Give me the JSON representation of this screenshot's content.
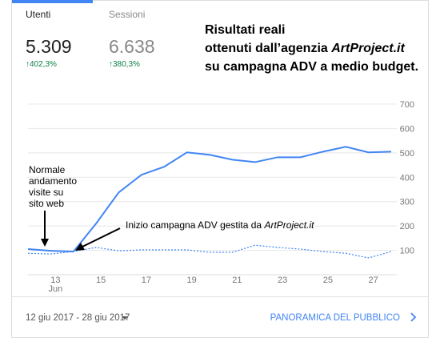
{
  "tabs": [
    {
      "label": "Utenti",
      "value": "5.309",
      "change": "↑402,3%"
    },
    {
      "label": "Sessioni",
      "value": "6.638",
      "change": "↑380,3%"
    }
  ],
  "headline": {
    "line1": "Risultati reali",
    "line2": "ottenuti dall’agenzia ",
    "line2_brand": "ArtProject.it",
    "line3": "su campagna ADV a medio budget."
  },
  "annotations": {
    "normal": [
      "Normale",
      "andamento",
      "visite su",
      "sito web"
    ],
    "start": "Inizio campagna ADV gestita da ",
    "start_brand": "ArtProject.it"
  },
  "footer": {
    "date_range": "12 giu 2017 - 28 giu 2017",
    "link": "PANORAMICA DEL PUBBLICO"
  },
  "chart_data": {
    "type": "line",
    "categories": [
      null,
      "13",
      null,
      "15",
      null,
      "17",
      null,
      "19",
      null,
      "21",
      null,
      "23",
      null,
      "25",
      null,
      "27",
      null
    ],
    "x_sublabel": "Jun",
    "series": [
      {
        "color": "#4285f4",
        "style": "solid",
        "values": [
          105,
          98,
          95,
          210,
          338,
          410,
          443,
          502,
          492,
          472,
          462,
          482,
          482,
          505,
          525,
          502,
          505
        ]
      },
      {
        "color": "#4285f4",
        "style": "dotted",
        "values": [
          88,
          85,
          95,
          112,
          98,
          102,
          102,
          102,
          92,
          92,
          121,
          112,
          105,
          95,
          88,
          69,
          95
        ]
      }
    ],
    "ylim": [
      0,
      700
    ],
    "yticks": [
      100,
      200,
      300,
      400,
      500,
      600,
      700
    ],
    "grid": true
  }
}
